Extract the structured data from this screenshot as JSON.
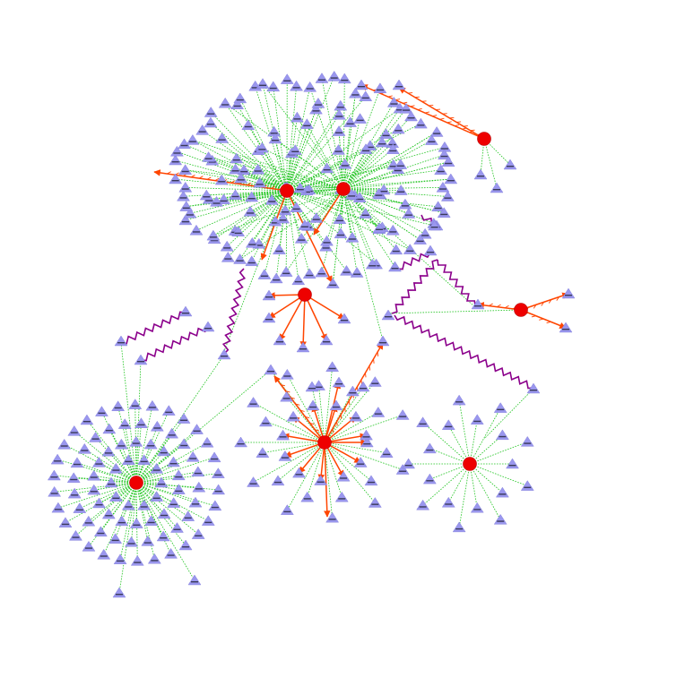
{
  "diagram": {
    "type": "network-graph",
    "background": "#ffffff",
    "colors": {
      "hub_node": "#ee0000",
      "leaf_node": "#9a97ee",
      "dotted_edge": "#22c522",
      "arrow_edge": "#ff4500",
      "zigzag_edge": "#8b008b"
    },
    "node_shapes": {
      "hub": "red-circle",
      "leaf": "purple-triangle"
    },
    "hubs": [
      {
        "id": "hub-1",
        "cluster": "top"
      },
      {
        "id": "hub-2",
        "cluster": "top"
      },
      {
        "id": "hub-3",
        "cluster": "top"
      },
      {
        "id": "hub-4",
        "cluster": "top-right"
      },
      {
        "id": "hub-5",
        "cluster": "right"
      },
      {
        "id": "hub-6",
        "cluster": "bottom-left"
      },
      {
        "id": "hub-7",
        "cluster": "bottom-center"
      },
      {
        "id": "hub-8",
        "cluster": "bottom-right"
      }
    ],
    "edge_types": [
      "dotted-green",
      "arrow-red",
      "zigzag-purple"
    ]
  }
}
